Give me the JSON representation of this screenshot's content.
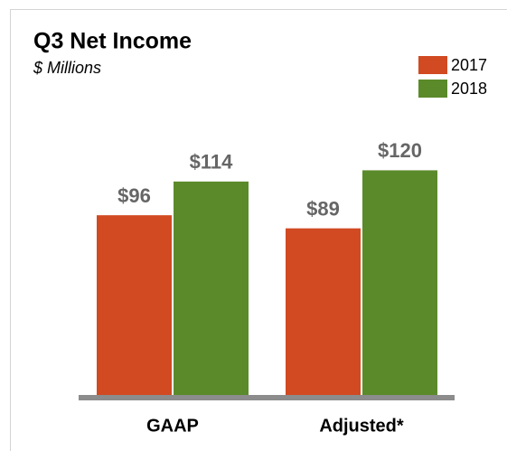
{
  "chart_data": {
    "type": "bar",
    "title": "Q3 Net Income",
    "subtitle": "$ Millions",
    "categories": [
      "GAAP",
      "Adjusted*"
    ],
    "series": [
      {
        "name": "2017",
        "color": "#d14a22",
        "values": [
          96,
          89
        ],
        "value_labels": [
          "$96",
          "$89"
        ]
      },
      {
        "name": "2018",
        "color": "#5b8a2b",
        "values": [
          114,
          120
        ],
        "value_labels": [
          "$114",
          "$120"
        ]
      }
    ],
    "ylim": [
      0,
      140
    ],
    "legend": "top-right"
  }
}
